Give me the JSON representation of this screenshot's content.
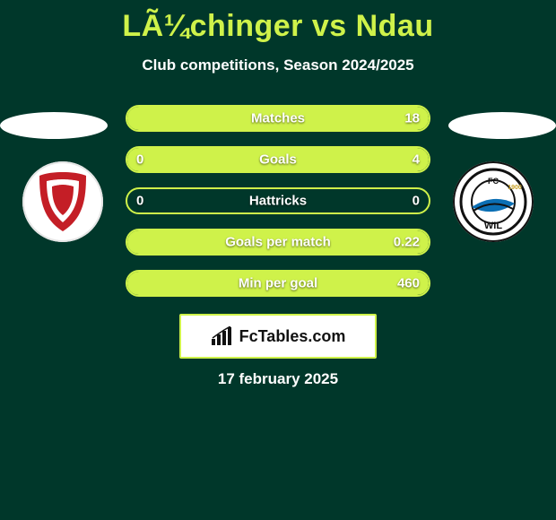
{
  "title": "LÃ¼chinger vs Ndau",
  "subtitle": "Club competitions, Season 2024/2025",
  "date": "17 february 2025",
  "brand_text": "FcTables.com",
  "colors": {
    "background": "#00372a",
    "accent": "#cff24a",
    "text": "#ffffff",
    "badge_left_primary": "#c41e26",
    "badge_right_ring": "#111111",
    "badge_right_blue": "#0b6fb4",
    "badge_right_gold": "#c9a227"
  },
  "rows": [
    {
      "label": "Matches",
      "left": "",
      "right": "18",
      "fill_left_pct": 0,
      "fill_right_pct": 100
    },
    {
      "label": "Goals",
      "left": "0",
      "right": "4",
      "fill_left_pct": 0,
      "fill_right_pct": 100
    },
    {
      "label": "Hattricks",
      "left": "0",
      "right": "0",
      "fill_left_pct": 0,
      "fill_right_pct": 0
    },
    {
      "label": "Goals per match",
      "left": "",
      "right": "0.22",
      "fill_left_pct": 0,
      "fill_right_pct": 100
    },
    {
      "label": "Min per goal",
      "left": "",
      "right": "460",
      "fill_left_pct": 0,
      "fill_right_pct": 100
    }
  ]
}
